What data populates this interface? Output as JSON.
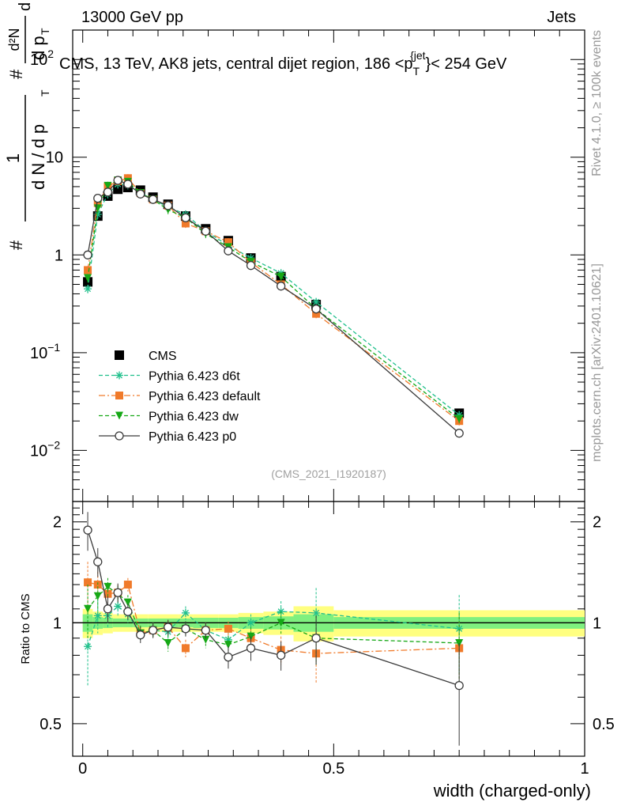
{
  "header": {
    "left": "13000 GeV pp",
    "right": "Jets"
  },
  "side_labels": {
    "rivet": "Rivet 4.1.0, ≥ 100k events",
    "mcplots": "mcplots.cern.ch [arXiv:2401.10621]"
  },
  "chart_data": [
    {
      "type": "line",
      "panel": "main",
      "title": "CMS, 13 TeV, AK8 jets, central dijet region, 186 < p_T^{jet} < 254 GeV",
      "title_parts": {
        "prefix": "CMS, 13 TeV, AK8 jets, central dijet region, 186 <p",
        "sub": "T",
        "sup": "{jet",
        "suffix": "}< 254 GeV"
      },
      "ylabel_parts": {
        "frac_num": "1",
        "frac_den": "d N / d p",
        "den_sub": "T",
        "hash": "#",
        "rhs_num": "d²N",
        "rhs_den": "d p",
        "rhs_den_sub": "T",
        "rhs_tail": "d λ"
      },
      "xlabel": "",
      "yscale": "log",
      "ylim": [
        0.003,
        200
      ],
      "xlim": [
        -0.02,
        1.0
      ],
      "y_ticks": [
        {
          "value": 0.01,
          "label": "10",
          "exp": "−2"
        },
        {
          "value": 0.1,
          "label": "10",
          "exp": "−1"
        },
        {
          "value": 1,
          "label": "1",
          "exp": ""
        },
        {
          "value": 10,
          "label": "10",
          "exp": ""
        },
        {
          "value": 100,
          "label": "10",
          "exp": "2"
        }
      ],
      "watermark": "(CMS_2021_I1920187)",
      "x": [
        0.01,
        0.03,
        0.05,
        0.07,
        0.09,
        0.115,
        0.14,
        0.17,
        0.205,
        0.245,
        0.29,
        0.335,
        0.395,
        0.465,
        0.75
      ],
      "series": [
        {
          "name": "CMS",
          "color": "#000000",
          "marker": "square",
          "line": "none",
          "values": [
            0.53,
            2.5,
            4.0,
            4.7,
            4.9,
            4.6,
            3.9,
            3.3,
            2.5,
            1.85,
            1.4,
            0.93,
            0.6,
            0.31,
            0.024
          ]
        },
        {
          "name": "Pythia 6.423 d6t",
          "color": "#20c08c",
          "marker": "star",
          "line": "dashed",
          "values": [
            0.45,
            2.6,
            4.2,
            5.3,
            5.2,
            4.3,
            3.7,
            3.1,
            2.6,
            1.75,
            1.25,
            0.93,
            0.65,
            0.33,
            0.023
          ]
        },
        {
          "name": "Pythia 6.423 default",
          "color": "#f07a2a",
          "marker": "square",
          "line": "dashdot",
          "values": [
            0.7,
            3.4,
            5.0,
            5.7,
            6.1,
            4.3,
            3.7,
            3.2,
            2.1,
            1.75,
            1.35,
            0.84,
            0.5,
            0.25,
            0.02
          ]
        },
        {
          "name": "Pythia 6.423 dw",
          "color": "#16a816",
          "marker": "triangle-down",
          "line": "dashed",
          "values": [
            0.58,
            3.0,
            5.1,
            5.8,
            5.6,
            4.3,
            3.7,
            2.9,
            2.4,
            1.65,
            1.2,
            0.85,
            0.6,
            0.28,
            0.021
          ]
        },
        {
          "name": "Pythia 6.423 p0",
          "color": "#3a3a3a",
          "marker": "circle-open",
          "line": "solid",
          "values": [
            1.0,
            3.8,
            4.4,
            5.8,
            5.3,
            4.2,
            3.7,
            3.2,
            2.4,
            1.75,
            1.1,
            0.78,
            0.48,
            0.28,
            0.015
          ]
        }
      ],
      "legend_position": "middle-left"
    },
    {
      "type": "line",
      "panel": "ratio",
      "ylabel": "Ratio to CMS",
      "xlabel": "width (charged-only)",
      "ylim": [
        0.4,
        2.3
      ],
      "xlim": [
        -0.02,
        1.0
      ],
      "y_ticks": [
        0.5,
        1,
        2
      ],
      "x_ticks": [
        0,
        0.5,
        1
      ],
      "x": [
        0.01,
        0.03,
        0.05,
        0.07,
        0.09,
        0.115,
        0.14,
        0.17,
        0.205,
        0.245,
        0.29,
        0.335,
        0.395,
        0.465,
        0.75
      ],
      "bands": {
        "x_edges": [
          0.0,
          0.02,
          0.04,
          0.06,
          0.08,
          0.1,
          0.13,
          0.15,
          0.19,
          0.22,
          0.27,
          0.31,
          0.36,
          0.42,
          0.5,
          1.0
        ],
        "inner_halfwidth": [
          0.06,
          0.04,
          0.035,
          0.03,
          0.03,
          0.03,
          0.03,
          0.03,
          0.03,
          0.035,
          0.035,
          0.04,
          0.045,
          0.06,
          0.04
        ],
        "outer_halfwidth": [
          0.1,
          0.08,
          0.07,
          0.06,
          0.06,
          0.06,
          0.06,
          0.06,
          0.06,
          0.06,
          0.06,
          0.07,
          0.08,
          0.12,
          0.09
        ],
        "inner_color": "#7ff07f",
        "outer_color": "#ffff80"
      },
      "series": [
        {
          "name": "Pythia 6.423 d6t",
          "color": "#20c08c",
          "marker": "star",
          "line": "dashed",
          "values": [
            0.85,
            1.05,
            1.05,
            1.12,
            1.06,
            0.93,
            0.95,
            0.94,
            1.07,
            0.95,
            0.89,
            1.0,
            1.08,
            1.07,
            0.96
          ],
          "errors": [
            0.2,
            0.12,
            0.08,
            0.07,
            0.06,
            0.05,
            0.05,
            0.05,
            0.05,
            0.05,
            0.05,
            0.06,
            0.08,
            0.2,
            0.25
          ]
        },
        {
          "name": "Pythia 6.423 default",
          "color": "#f07a2a",
          "marker": "square",
          "line": "dashdot",
          "values": [
            1.32,
            1.3,
            1.22,
            1.23,
            1.3,
            0.93,
            0.95,
            0.97,
            0.84,
            0.95,
            0.96,
            0.9,
            0.83,
            0.81,
            0.84
          ],
          "errors": [
            0.2,
            0.12,
            0.08,
            0.07,
            0.06,
            0.05,
            0.05,
            0.05,
            0.05,
            0.05,
            0.05,
            0.06,
            0.08,
            0.15,
            0.2
          ]
        },
        {
          "name": "Pythia 6.423 dw",
          "color": "#16a816",
          "marker": "triangle-down",
          "line": "dashed",
          "values": [
            1.1,
            1.2,
            1.28,
            1.22,
            1.15,
            0.93,
            0.95,
            0.87,
            0.96,
            0.89,
            0.86,
            0.91,
            1.0,
            0.9,
            0.87
          ],
          "errors": [
            0.2,
            0.12,
            0.08,
            0.07,
            0.06,
            0.05,
            0.05,
            0.05,
            0.05,
            0.05,
            0.05,
            0.06,
            0.08,
            0.15,
            0.2
          ]
        },
        {
          "name": "Pythia 6.423 p0",
          "color": "#3a3a3a",
          "marker": "circle-open",
          "line": "solid",
          "values": [
            1.89,
            1.52,
            1.1,
            1.23,
            1.08,
            0.92,
            0.95,
            0.97,
            0.96,
            0.95,
            0.79,
            0.84,
            0.8,
            0.9,
            0.65
          ],
          "errors": [
            0.25,
            0.15,
            0.1,
            0.08,
            0.06,
            0.05,
            0.05,
            0.05,
            0.05,
            0.05,
            0.06,
            0.07,
            0.08,
            0.15,
            0.22
          ]
        }
      ]
    }
  ]
}
